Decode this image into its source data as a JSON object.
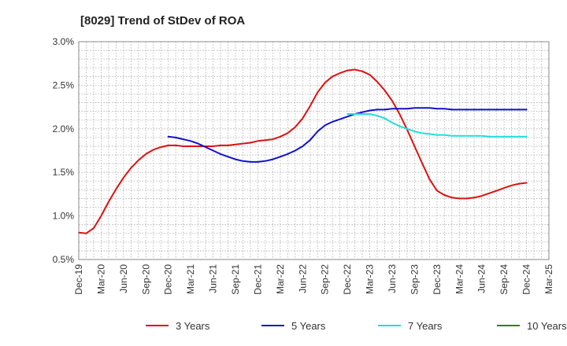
{
  "chart_data": {
    "type": "line",
    "title": "[8029]  Trend of StDev of ROA",
    "xlabel": "",
    "ylabel": "",
    "categories": [
      "Dec-19",
      "Mar-20",
      "Jun-20",
      "Sep-20",
      "Dec-20",
      "Mar-21",
      "Jun-21",
      "Sep-21",
      "Dec-21",
      "Mar-22",
      "Jun-22",
      "Sep-22",
      "Dec-22",
      "Mar-23",
      "Jun-23",
      "Sep-23",
      "Dec-23",
      "Mar-24",
      "Jun-24",
      "Sep-24",
      "Dec-24",
      "Mar-25"
    ],
    "y_ticks": [
      "0.5%",
      "1.0%",
      "1.5%",
      "2.0%",
      "2.5%",
      "3.0%"
    ],
    "ylim": [
      0.5,
      3.0
    ],
    "y_unit": "%",
    "grid": true,
    "legend_position": "bottom",
    "series": [
      {
        "name": "3 Years",
        "color": "#dd1111",
        "x": [
          0,
          0.33,
          0.67,
          1,
          1.33,
          1.67,
          2,
          2.33,
          2.67,
          3,
          3.33,
          3.67,
          4,
          4.33,
          4.67,
          5,
          5.33,
          5.67,
          6,
          6.33,
          6.67,
          7,
          7.33,
          7.67,
          8,
          8.33,
          8.67,
          9,
          9.33,
          9.67,
          10,
          10.33,
          10.67,
          11,
          11.33,
          11.67,
          12,
          12.33,
          12.67,
          13,
          13.33,
          13.67,
          14,
          14.33,
          14.67,
          15,
          15.33,
          15.67,
          16,
          16.33,
          16.67,
          17,
          17.33,
          17.67,
          18,
          18.33,
          18.67,
          19,
          19.33,
          19.67,
          20
        ],
        "values": [
          0.81,
          0.8,
          0.86,
          1.0,
          1.16,
          1.31,
          1.44,
          1.55,
          1.64,
          1.71,
          1.76,
          1.79,
          1.81,
          1.81,
          1.8,
          1.8,
          1.8,
          1.8,
          1.8,
          1.81,
          1.81,
          1.82,
          1.83,
          1.84,
          1.86,
          1.87,
          1.88,
          1.91,
          1.95,
          2.02,
          2.12,
          2.26,
          2.42,
          2.53,
          2.6,
          2.64,
          2.67,
          2.68,
          2.66,
          2.62,
          2.54,
          2.44,
          2.32,
          2.17,
          1.99,
          1.8,
          1.61,
          1.42,
          1.29,
          1.24,
          1.21,
          1.2,
          1.2,
          1.21,
          1.23,
          1.26,
          1.29,
          1.32,
          1.35,
          1.37,
          1.38
        ]
      },
      {
        "name": "5 Years",
        "color": "#1111cc",
        "x": [
          4,
          4.33,
          4.67,
          5,
          5.33,
          5.67,
          6,
          6.33,
          6.67,
          7,
          7.33,
          7.67,
          8,
          8.33,
          8.67,
          9,
          9.33,
          9.67,
          10,
          10.33,
          10.67,
          11,
          11.33,
          11.67,
          12,
          12.33,
          12.67,
          13,
          13.33,
          13.67,
          14,
          14.33,
          14.67,
          15,
          15.33,
          15.67,
          16,
          16.33,
          16.67,
          17,
          17.33,
          17.67,
          18,
          18.33,
          18.67,
          19,
          19.33,
          19.67,
          20
        ],
        "values": [
          1.91,
          1.9,
          1.88,
          1.86,
          1.83,
          1.79,
          1.75,
          1.71,
          1.68,
          1.65,
          1.63,
          1.62,
          1.62,
          1.63,
          1.65,
          1.68,
          1.71,
          1.75,
          1.8,
          1.87,
          1.97,
          2.04,
          2.08,
          2.11,
          2.14,
          2.17,
          2.19,
          2.21,
          2.22,
          2.22,
          2.23,
          2.23,
          2.23,
          2.24,
          2.24,
          2.24,
          2.23,
          2.23,
          2.22,
          2.22,
          2.22,
          2.22,
          2.22,
          2.22,
          2.22,
          2.22,
          2.22,
          2.22,
          2.22
        ]
      },
      {
        "name": "7 Years",
        "color": "#22dddd",
        "x": [
          12,
          12.33,
          12.67,
          13,
          13.33,
          13.67,
          14,
          14.33,
          14.67,
          15,
          15.33,
          15.67,
          16,
          16.33,
          16.67,
          17,
          17.33,
          17.67,
          18,
          18.33,
          18.67,
          19,
          19.33,
          19.67,
          20
        ],
        "values": [
          2.17,
          2.17,
          2.17,
          2.17,
          2.15,
          2.12,
          2.07,
          2.03,
          2.0,
          1.97,
          1.95,
          1.94,
          1.93,
          1.93,
          1.92,
          1.92,
          1.92,
          1.92,
          1.92,
          1.91,
          1.91,
          1.91,
          1.91,
          1.91,
          1.91
        ]
      },
      {
        "name": "10 Years",
        "color": "#228822",
        "x": [],
        "values": []
      }
    ]
  }
}
